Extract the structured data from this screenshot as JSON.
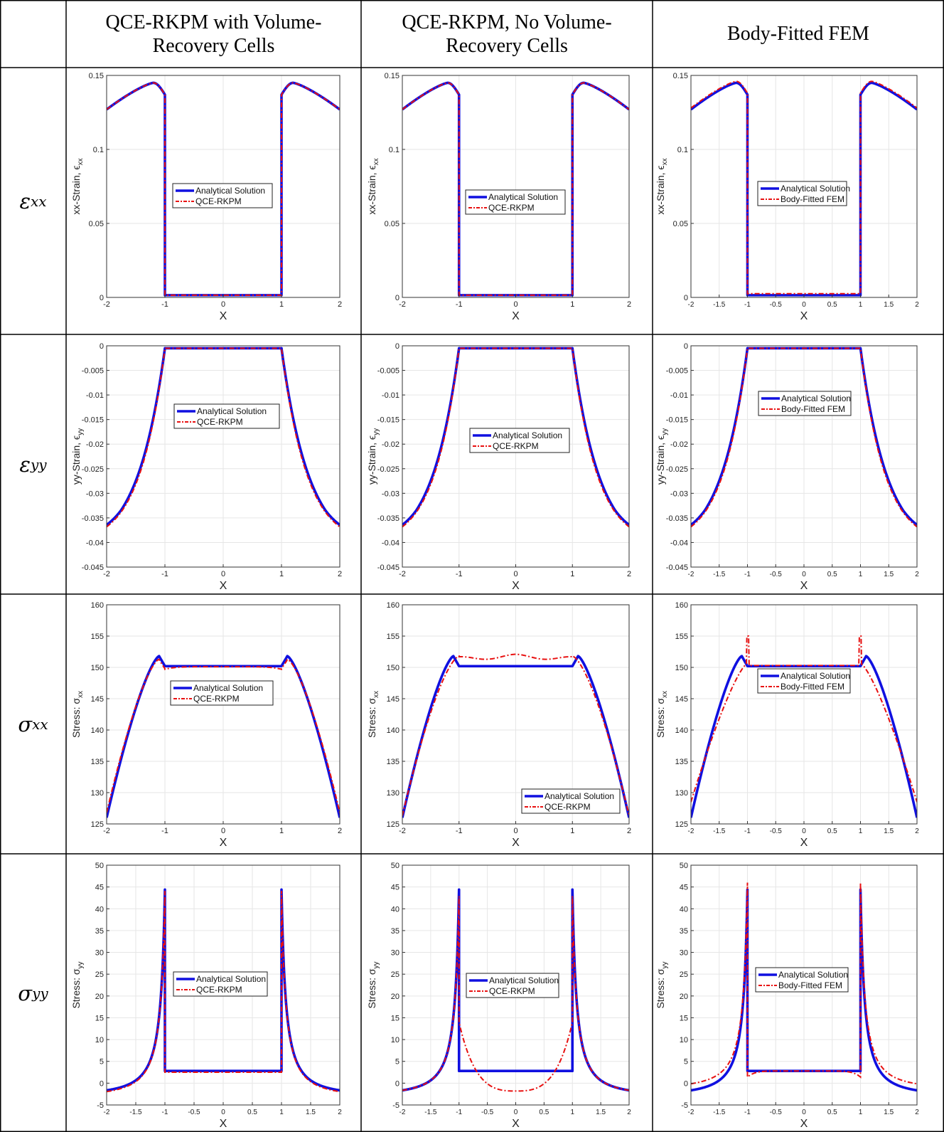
{
  "headers": {
    "c1": "QCE-RKPM with Volume-Recovery Cells",
    "c2": "QCE-RKPM, No Volume-Recovery Cells",
    "c3": "Body-Fitted FEM"
  },
  "rows": [
    {
      "symbol": "ε",
      "sub": "xx"
    },
    {
      "symbol": "ε",
      "sub": "yy"
    },
    {
      "symbol": "σ",
      "sub": "xx"
    },
    {
      "symbol": "σ",
      "sub": "yy"
    }
  ],
  "colors": {
    "analytical": "#1010e0",
    "numerical": "#e81010",
    "grid": "#e6e6e6"
  },
  "chart_data": [
    {
      "id": "exx_1",
      "type": "line",
      "quantity": "exx",
      "xlabel": "X",
      "ylabel": "xx-Strain, ϵ",
      "ylabel_sub": "xx",
      "xlim": [
        -2,
        2
      ],
      "ylim": [
        0,
        0.15
      ],
      "xticks": [
        -2,
        -1,
        0,
        1,
        2
      ],
      "yticks": [
        0,
        0.05,
        0.1,
        0.15
      ],
      "ytick_labels": [
        "0",
        "0.05",
        "0.1",
        "0.15"
      ],
      "series": [
        {
          "name": "Analytical Solution"
        },
        {
          "name": "QCE-RKPM"
        }
      ],
      "legend": "center"
    },
    {
      "id": "exx_2",
      "type": "line",
      "quantity": "exx",
      "xlabel": "X",
      "ylabel": "xx-Strain, ϵ",
      "ylabel_sub": "xx",
      "xlim": [
        -2,
        2
      ],
      "ylim": [
        0,
        0.15
      ],
      "xticks": [
        -2,
        -1,
        0,
        1,
        2
      ],
      "yticks": [
        0,
        0.05,
        0.1,
        0.15
      ],
      "ytick_labels": [
        "0",
        "0.05",
        "0.1",
        "0.15"
      ],
      "series": [
        {
          "name": "Analytical Solution"
        },
        {
          "name": "QCE-RKPM"
        }
      ],
      "legend": "center"
    },
    {
      "id": "exx_3",
      "type": "line",
      "quantity": "exx",
      "xlabel": "X",
      "ylabel": "xx-Strain, ϵ",
      "ylabel_sub": "xx",
      "xlim": [
        -2,
        2
      ],
      "ylim": [
        0,
        0.15
      ],
      "xticks": [
        -2,
        -1.5,
        -1,
        -0.5,
        0,
        0.5,
        1,
        1.5,
        2
      ],
      "yticks": [
        0,
        0.05,
        0.1,
        0.15
      ],
      "ytick_labels": [
        "0",
        "0.05",
        "0.1",
        "0.15"
      ],
      "series": [
        {
          "name": "Analytical Solution"
        },
        {
          "name": "Body-Fitted FEM"
        }
      ],
      "legend": "center"
    },
    {
      "id": "eyy_1",
      "type": "line",
      "quantity": "eyy",
      "xlabel": "X",
      "ylabel": "yy-Strain, ϵ",
      "ylabel_sub": "yy",
      "xlim": [
        -2,
        2
      ],
      "ylim": [
        -0.045,
        0
      ],
      "xticks": [
        -2,
        -1,
        0,
        1,
        2
      ],
      "yticks": [
        -0.045,
        -0.04,
        -0.035,
        -0.03,
        -0.025,
        -0.02,
        -0.015,
        -0.01,
        -0.005,
        0
      ],
      "ytick_labels": [
        "-0.045",
        "-0.04",
        "-0.035",
        "-0.03",
        "-0.025",
        "-0.02",
        "-0.015",
        "-0.01",
        "-0.005",
        "0"
      ],
      "series": [
        {
          "name": "Analytical Solution"
        },
        {
          "name": "QCE-RKPM"
        }
      ],
      "legend": "center"
    },
    {
      "id": "eyy_2",
      "type": "line",
      "quantity": "eyy",
      "xlabel": "X",
      "ylabel": "yy-Strain, ϵ",
      "ylabel_sub": "yy",
      "xlim": [
        -2,
        2
      ],
      "ylim": [
        -0.045,
        0
      ],
      "xticks": [
        -2,
        -1,
        0,
        1,
        2
      ],
      "yticks": [
        -0.045,
        -0.04,
        -0.035,
        -0.03,
        -0.025,
        -0.02,
        -0.015,
        -0.01,
        -0.005,
        0
      ],
      "ytick_labels": [
        "-0.045",
        "-0.04",
        "-0.035",
        "-0.03",
        "-0.025",
        "-0.02",
        "-0.015",
        "-0.01",
        "-0.005",
        "0"
      ],
      "series": [
        {
          "name": "Analytical Solution"
        },
        {
          "name": "QCE-RKPM"
        }
      ],
      "legend": "center"
    },
    {
      "id": "eyy_3",
      "type": "line",
      "quantity": "eyy",
      "xlabel": "X",
      "ylabel": "yy-Strain, ϵ",
      "ylabel_sub": "yy",
      "xlim": [
        -2,
        2
      ],
      "ylim": [
        -0.045,
        0
      ],
      "xticks": [
        -2,
        -1.5,
        -1,
        -0.5,
        0,
        0.5,
        1,
        1.5,
        2
      ],
      "yticks": [
        -0.045,
        -0.04,
        -0.035,
        -0.03,
        -0.025,
        -0.02,
        -0.015,
        -0.01,
        -0.005,
        0
      ],
      "ytick_labels": [
        "-0.045",
        "-0.04",
        "-0.035",
        "-0.03",
        "-0.025",
        "-0.02",
        "-0.015",
        "-0.01",
        "-0.005",
        "0"
      ],
      "series": [
        {
          "name": "Analytical Solution"
        },
        {
          "name": "Body-Fitted FEM"
        }
      ],
      "legend": "center"
    },
    {
      "id": "sxx_1",
      "type": "line",
      "quantity": "sxx",
      "xlabel": "X",
      "ylabel": "Stress: σ",
      "ylabel_sub": "xx",
      "xlim": [
        -2,
        2
      ],
      "ylim": [
        125,
        160
      ],
      "xticks": [
        -2,
        -1,
        0,
        1,
        2
      ],
      "yticks": [
        125,
        130,
        135,
        140,
        145,
        150,
        155,
        160
      ],
      "ytick_labels": [
        "125",
        "130",
        "135",
        "140",
        "145",
        "150",
        "155",
        "160"
      ],
      "series": [
        {
          "name": "Analytical Solution"
        },
        {
          "name": "QCE-RKPM"
        }
      ],
      "legend": "center"
    },
    {
      "id": "sxx_2",
      "type": "line",
      "quantity": "sxx",
      "xlabel": "X",
      "ylabel": "Stress: σ",
      "ylabel_sub": "xx",
      "xlim": [
        -2,
        2
      ],
      "ylim": [
        125,
        160
      ],
      "xticks": [
        -2,
        -1,
        0,
        1,
        2
      ],
      "yticks": [
        125,
        130,
        135,
        140,
        145,
        150,
        155,
        160
      ],
      "ytick_labels": [
        "125",
        "130",
        "135",
        "140",
        "145",
        "150",
        "155",
        "160"
      ],
      "series": [
        {
          "name": "Analytical Solution"
        },
        {
          "name": "QCE-RKPM"
        }
      ],
      "legend": "bottom-right"
    },
    {
      "id": "sxx_3",
      "type": "line",
      "quantity": "sxx",
      "xlabel": "X",
      "ylabel": "Stress: σ",
      "ylabel_sub": "xx",
      "xlim": [
        -2,
        2
      ],
      "ylim": [
        125,
        160
      ],
      "xticks": [
        -2,
        -1.5,
        -1,
        -0.5,
        0,
        0.5,
        1,
        1.5,
        2
      ],
      "yticks": [
        125,
        130,
        135,
        140,
        145,
        150,
        155,
        160
      ],
      "ytick_labels": [
        "125",
        "130",
        "135",
        "140",
        "145",
        "150",
        "155",
        "160"
      ],
      "series": [
        {
          "name": "Analytical Solution"
        },
        {
          "name": "Body-Fitted FEM"
        }
      ],
      "legend": "center"
    },
    {
      "id": "syy_1",
      "type": "line",
      "quantity": "syy",
      "xlabel": "X",
      "ylabel": "Stress: σ",
      "ylabel_sub": "yy",
      "xlim": [
        -2,
        2
      ],
      "ylim": [
        -5,
        50
      ],
      "xticks": [
        -2,
        -1.5,
        -1,
        -0.5,
        0,
        0.5,
        1,
        1.5,
        2
      ],
      "yticks": [
        -5,
        0,
        5,
        10,
        15,
        20,
        25,
        30,
        35,
        40,
        45,
        50
      ],
      "ytick_labels": [
        "-5",
        "0",
        "5",
        "10",
        "15",
        "20",
        "25",
        "30",
        "35",
        "40",
        "45",
        "50"
      ],
      "series": [
        {
          "name": "Analytical Solution"
        },
        {
          "name": "QCE-RKPM"
        }
      ],
      "legend": "center"
    },
    {
      "id": "syy_2",
      "type": "line",
      "quantity": "syy",
      "xlabel": "X",
      "ylabel": "Stress: σ",
      "ylabel_sub": "yy",
      "xlim": [
        -2,
        2
      ],
      "ylim": [
        -5,
        50
      ],
      "xticks": [
        -2,
        -1.5,
        -1,
        -0.5,
        0,
        0.5,
        1,
        1.5,
        2
      ],
      "yticks": [
        -5,
        0,
        5,
        10,
        15,
        20,
        25,
        30,
        35,
        40,
        45,
        50
      ],
      "ytick_labels": [
        "-5",
        "0",
        "5",
        "10",
        "15",
        "20",
        "25",
        "30",
        "35",
        "40",
        "45",
        "50"
      ],
      "series": [
        {
          "name": "Analytical Solution"
        },
        {
          "name": "QCE-RKPM"
        }
      ],
      "legend": "center"
    },
    {
      "id": "syy_3",
      "type": "line",
      "quantity": "syy",
      "xlabel": "X",
      "ylabel": "Stress: σ",
      "ylabel_sub": "yy",
      "xlim": [
        -2,
        2
      ],
      "ylim": [
        -5,
        50
      ],
      "xticks": [
        -2,
        -1.5,
        -1,
        -0.5,
        0,
        0.5,
        1,
        1.5,
        2
      ],
      "yticks": [
        -5,
        0,
        5,
        10,
        15,
        20,
        25,
        30,
        35,
        40,
        45,
        50
      ],
      "ytick_labels": [
        "-5",
        "0",
        "5",
        "10",
        "15",
        "20",
        "25",
        "30",
        "35",
        "40",
        "45",
        "50"
      ],
      "series": [
        {
          "name": "Analytical Solution"
        },
        {
          "name": "Body-Fitted FEM"
        }
      ],
      "legend": "center"
    }
  ]
}
